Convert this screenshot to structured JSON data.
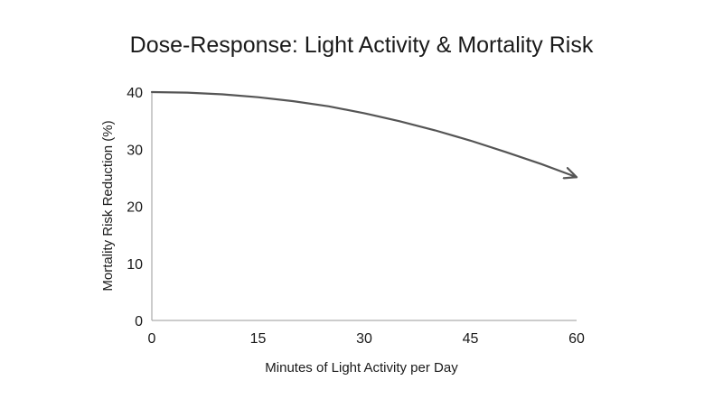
{
  "chart_data": {
    "type": "line",
    "title": "Dose-Response: Light Activity & Mortality Risk",
    "xlabel": "Minutes of Light Activity per Day",
    "ylabel": "Mortality Risk Reduction (%)",
    "xlim": [
      0,
      60
    ],
    "ylim": [
      0,
      40
    ],
    "x_ticks": [
      0,
      15,
      30,
      45,
      60
    ],
    "y_ticks": [
      0,
      10,
      20,
      30,
      40
    ],
    "grid": false,
    "series": [
      {
        "color": "#555555",
        "end_marker": "arrow",
        "x": [
          0,
          5,
          10,
          15,
          20,
          25,
          30,
          35,
          40,
          45,
          50,
          55,
          60
        ],
        "y": [
          40.0,
          39.9,
          39.6,
          39.1,
          38.4,
          37.5,
          36.3,
          34.9,
          33.3,
          31.5,
          29.5,
          27.4,
          25.1
        ]
      }
    ]
  },
  "colors": {
    "axis": "#999999",
    "text": "#1a1a1a",
    "line": "#555555"
  }
}
